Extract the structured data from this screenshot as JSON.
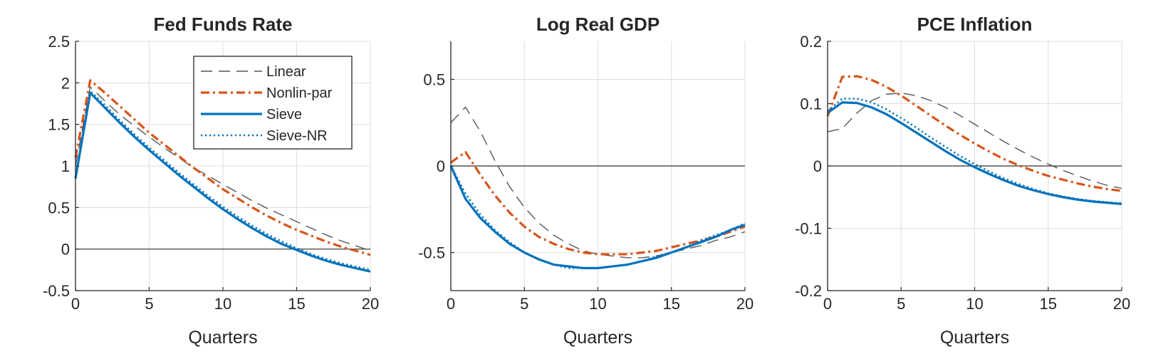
{
  "colors": {
    "linear": "#555555",
    "nonlin": "#D95319",
    "sieve": "#0072BD",
    "sieve_nr": "#0072BD",
    "axis": "#262626",
    "grid": "#dedede",
    "zero": "#303030"
  },
  "chart_data": [
    {
      "type": "line",
      "title": "Fed Funds Rate",
      "xlabel": "Quarters",
      "ylabel": "",
      "xlim": [
        0,
        20
      ],
      "ylim": [
        -0.5,
        2.5
      ],
      "xticks": [
        0,
        5,
        10,
        15,
        20
      ],
      "xtick_labels": [
        "0",
        "5",
        "10",
        "15",
        "20"
      ],
      "yticks": [
        -0.5,
        0,
        0.5,
        1,
        1.5,
        2,
        2.5
      ],
      "ytick_labels": [
        "-0.5",
        "0",
        "0.5",
        "1",
        "1.5",
        "2",
        "2.5"
      ],
      "zero_line": true,
      "grid": true,
      "legend": {
        "position": "top-right",
        "entries": [
          "Linear",
          "Nonlin-par",
          "Sieve",
          "Sieve-NR"
        ]
      },
      "x": [
        0,
        1,
        2,
        3,
        4,
        5,
        6,
        7,
        8,
        9,
        10,
        11,
        12,
        13,
        14,
        15,
        16,
        17,
        18,
        19,
        20
      ],
      "series": [
        {
          "name": "Linear",
          "style": "linear",
          "values": [
            1.0,
            1.95,
            1.78,
            1.62,
            1.48,
            1.35,
            1.22,
            1.1,
            0.98,
            0.88,
            0.78,
            0.68,
            0.58,
            0.49,
            0.41,
            0.33,
            0.25,
            0.17,
            0.1,
            0.04,
            -0.02
          ]
        },
        {
          "name": "Nonlin-par",
          "style": "nonlin",
          "values": [
            1.1,
            2.03,
            1.88,
            1.72,
            1.56,
            1.4,
            1.26,
            1.12,
            0.98,
            0.85,
            0.72,
            0.61,
            0.5,
            0.4,
            0.31,
            0.23,
            0.16,
            0.09,
            0.03,
            -0.02,
            -0.07
          ]
        },
        {
          "name": "Sieve",
          "style": "sieve",
          "values": [
            0.85,
            1.88,
            1.7,
            1.52,
            1.35,
            1.19,
            1.04,
            0.89,
            0.75,
            0.61,
            0.48,
            0.36,
            0.25,
            0.15,
            0.06,
            -0.01,
            -0.08,
            -0.14,
            -0.19,
            -0.23,
            -0.27
          ]
        },
        {
          "name": "Sieve-NR",
          "style": "sieve_nr",
          "values": [
            0.85,
            1.9,
            1.73,
            1.55,
            1.38,
            1.22,
            1.07,
            0.92,
            0.78,
            0.64,
            0.51,
            0.39,
            0.28,
            0.18,
            0.09,
            0.01,
            -0.06,
            -0.12,
            -0.17,
            -0.21,
            -0.25
          ]
        }
      ]
    },
    {
      "type": "line",
      "title": "Log Real GDP",
      "xlabel": "Quarters",
      "ylabel": "",
      "xlim": [
        0,
        20
      ],
      "ylim": [
        -0.72,
        0.72
      ],
      "xticks": [
        0,
        5,
        10,
        15,
        20
      ],
      "xtick_labels": [
        "0",
        "5",
        "10",
        "15",
        "20"
      ],
      "yticks": [
        -0.5,
        0,
        0.5
      ],
      "ytick_labels": [
        "-0.5",
        "0",
        "0.5"
      ],
      "zero_line": true,
      "grid": true,
      "x": [
        0,
        1,
        2,
        3,
        4,
        5,
        6,
        7,
        8,
        9,
        10,
        11,
        12,
        13,
        14,
        15,
        16,
        17,
        18,
        19,
        20
      ],
      "series": [
        {
          "name": "Linear",
          "style": "linear",
          "values": [
            0.25,
            0.34,
            0.2,
            0.03,
            -0.12,
            -0.24,
            -0.33,
            -0.4,
            -0.45,
            -0.49,
            -0.51,
            -0.52,
            -0.53,
            -0.53,
            -0.52,
            -0.5,
            -0.48,
            -0.46,
            -0.43,
            -0.41,
            -0.38
          ]
        },
        {
          "name": "Nonlin-par",
          "style": "nonlin",
          "values": [
            0.02,
            0.08,
            -0.05,
            -0.17,
            -0.27,
            -0.35,
            -0.41,
            -0.45,
            -0.48,
            -0.5,
            -0.51,
            -0.51,
            -0.51,
            -0.5,
            -0.49,
            -0.47,
            -0.45,
            -0.43,
            -0.41,
            -0.38,
            -0.35
          ]
        },
        {
          "name": "Sieve",
          "style": "sieve",
          "values": [
            0.0,
            -0.19,
            -0.3,
            -0.38,
            -0.45,
            -0.5,
            -0.54,
            -0.57,
            -0.58,
            -0.59,
            -0.59,
            -0.58,
            -0.57,
            -0.55,
            -0.53,
            -0.5,
            -0.47,
            -0.44,
            -0.41,
            -0.37,
            -0.34
          ]
        },
        {
          "name": "Sieve-NR",
          "style": "sieve_nr",
          "values": [
            0.0,
            -0.16,
            -0.28,
            -0.37,
            -0.44,
            -0.5,
            -0.54,
            -0.57,
            -0.59,
            -0.59,
            -0.59,
            -0.58,
            -0.57,
            -0.55,
            -0.52,
            -0.5,
            -0.47,
            -0.43,
            -0.4,
            -0.37,
            -0.33
          ]
        }
      ]
    },
    {
      "type": "line",
      "title": "PCE Inflation",
      "xlabel": "Quarters",
      "ylabel": "",
      "xlim": [
        0,
        20
      ],
      "ylim": [
        -0.2,
        0.2
      ],
      "xticks": [
        0,
        5,
        10,
        15,
        20
      ],
      "xtick_labels": [
        "0",
        "5",
        "10",
        "15",
        "20"
      ],
      "yticks": [
        -0.2,
        -0.1,
        0,
        0.1,
        0.2
      ],
      "ytick_labels": [
        "-0.2",
        "-0.1",
        "0",
        "0.1",
        "0.2"
      ],
      "zero_line": true,
      "grid": true,
      "x": [
        0,
        1,
        2,
        3,
        4,
        5,
        6,
        7,
        8,
        9,
        10,
        11,
        12,
        13,
        14,
        15,
        16,
        17,
        18,
        19,
        20
      ],
      "series": [
        {
          "name": "Linear",
          "style": "linear",
          "values": [
            0.055,
            0.06,
            0.085,
            0.105,
            0.115,
            0.117,
            0.113,
            0.105,
            0.094,
            0.081,
            0.067,
            0.053,
            0.039,
            0.026,
            0.014,
            0.003,
            -0.007,
            -0.016,
            -0.024,
            -0.031,
            -0.036
          ]
        },
        {
          "name": "Nonlin-par",
          "style": "nonlin",
          "values": [
            0.08,
            0.143,
            0.144,
            0.138,
            0.127,
            0.113,
            0.097,
            0.081,
            0.065,
            0.05,
            0.036,
            0.023,
            0.011,
            0.001,
            -0.008,
            -0.016,
            -0.022,
            -0.028,
            -0.033,
            -0.037,
            -0.04
          ]
        },
        {
          "name": "Sieve",
          "style": "sieve",
          "values": [
            0.085,
            0.102,
            0.101,
            0.094,
            0.083,
            0.069,
            0.054,
            0.039,
            0.024,
            0.01,
            -0.002,
            -0.013,
            -0.023,
            -0.032,
            -0.039,
            -0.045,
            -0.05,
            -0.054,
            -0.057,
            -0.059,
            -0.061
          ]
        },
        {
          "name": "Sieve-NR",
          "style": "sieve_nr",
          "values": [
            0.088,
            0.108,
            0.108,
            0.102,
            0.091,
            0.077,
            0.062,
            0.046,
            0.031,
            0.016,
            0.003,
            -0.009,
            -0.02,
            -0.029,
            -0.037,
            -0.044,
            -0.049,
            -0.053,
            -0.056,
            -0.058,
            -0.06
          ]
        }
      ]
    }
  ]
}
